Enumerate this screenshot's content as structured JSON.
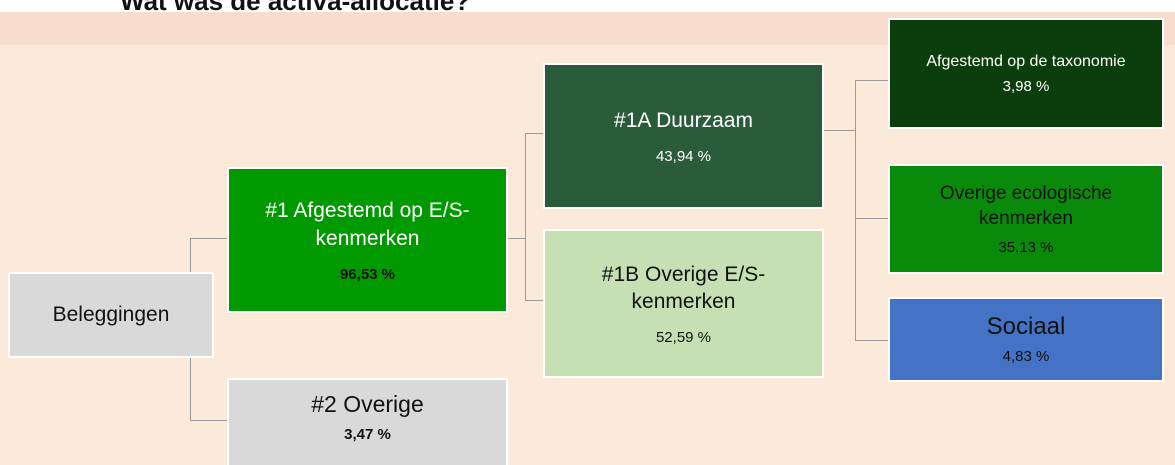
{
  "header": {
    "title": "Wat was de activa-allocatie?"
  },
  "nodes": [
    {
      "label": "Beleggingen"
    },
    {
      "label": "#1 Afgestemd op E/S-kenmerken",
      "value": "96,53 %"
    },
    {
      "label": "#2 Overige",
      "value": "3,47 %"
    },
    {
      "label": "#1A Duurzaam",
      "value": "43,94 %"
    },
    {
      "label": "#1B Overige E/S-kenmerken",
      "value": "52,59 %"
    },
    {
      "label": "Afgestemd op de taxonomie",
      "value": "3,98 %"
    },
    {
      "label": "Overige ecologische kenmerken",
      "value": "35,13 %"
    },
    {
      "label": "Sociaal",
      "value": "4,83 %"
    }
  ]
}
